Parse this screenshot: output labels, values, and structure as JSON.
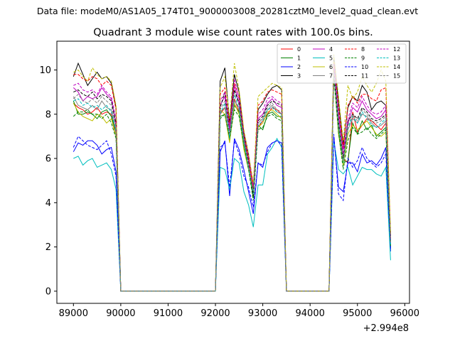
{
  "figure": {
    "suptitle": "Data file: modeM0/AS1A05_174T01_9000003008_20281cztM0_level2_quad_clean.evt",
    "offset_label": "+2.994e8"
  },
  "chart_data": {
    "type": "line",
    "title": "Quadrant 3 module wise count rates with 100.0s bins.",
    "xlabel": "",
    "ylabel": "",
    "xlim": [
      88650,
      96100
    ],
    "ylim": [
      -0.55,
      11.3
    ],
    "x_offset": 299400000,
    "xticks": [
      89000,
      90000,
      91000,
      92000,
      93000,
      94000,
      95000,
      96000
    ],
    "xtick_labels": [
      "89000",
      "90000",
      "91000",
      "92000",
      "93000",
      "94000",
      "95000",
      "96000"
    ],
    "yticks": [
      0,
      2,
      4,
      6,
      8,
      10
    ],
    "ytick_labels": [
      "0",
      "2",
      "4",
      "6",
      "8",
      "10"
    ],
    "grid": false,
    "legend_placement": "top-right",
    "legend_columns": 4,
    "segments": [
      {
        "x_start": 89000,
        "step": 100,
        "count": 7
      },
      {
        "x_start": 89700,
        "step": 100,
        "count": 3
      },
      {
        "x_start": 90000,
        "step": 100,
        "count": 19
      },
      {
        "x_start": 92000,
        "step": 100,
        "count": 16
      },
      {
        "x_start": 93600,
        "step": 100,
        "count": 9
      },
      {
        "x_start": 94500,
        "step": 100,
        "count": 13
      }
    ],
    "series": [
      {
        "name": "0",
        "color": "#ff0000",
        "dash": "solid",
        "values": [
          8.5,
          8.3,
          8.2,
          8.0,
          8.1,
          8.3,
          8.0,
          8.1,
          8.0,
          7.0,
          0,
          0,
          0,
          0,
          0,
          0,
          0,
          0,
          0,
          0,
          0,
          0,
          0,
          0,
          0,
          0,
          0,
          0,
          0,
          0,
          8.0,
          8.3,
          7.0,
          8.7,
          8.1,
          6.8,
          6.0,
          4.8,
          7.4,
          7.7,
          8.0,
          8.3,
          8.2,
          8.0,
          0,
          0,
          0,
          0,
          0,
          0,
          0,
          0,
          0,
          0,
          10.2,
          7.5,
          6.0,
          5.8,
          8.1,
          7.2,
          7.5,
          7.8,
          7.7,
          7.5,
          7.3,
          7.6,
          2.3
        ]
      },
      {
        "name": "1",
        "color": "#008000",
        "dash": "solid",
        "values": [
          8.6,
          8.0,
          8.0,
          8.1,
          8.0,
          7.8,
          8.1,
          8.2,
          7.9,
          7.2,
          0,
          0,
          0,
          0,
          0,
          0,
          0,
          0,
          0,
          0,
          0,
          0,
          0,
          0,
          0,
          0,
          0,
          0,
          0,
          0,
          7.9,
          8.0,
          6.8,
          8.4,
          8.1,
          6.6,
          5.6,
          4.2,
          7.5,
          7.3,
          8.0,
          8.1,
          7.9,
          7.9,
          0,
          0,
          0,
          0,
          0,
          0,
          0,
          0,
          0,
          0,
          10.0,
          7.2,
          5.8,
          5.9,
          7.6,
          7.1,
          7.7,
          7.3,
          7.5,
          7.0,
          7.2,
          7.4,
          2.0
        ]
      },
      {
        "name": "2",
        "color": "#0000ff",
        "dash": "solid",
        "values": [
          6.3,
          6.7,
          6.6,
          6.8,
          6.8,
          6.6,
          6.2,
          6.4,
          6.5,
          5.4,
          0,
          0,
          0,
          0,
          0,
          0,
          0,
          0,
          0,
          0,
          0,
          0,
          0,
          0,
          0,
          0,
          0,
          0,
          0,
          0,
          6.3,
          6.8,
          4.3,
          6.9,
          6.4,
          5.5,
          4.5,
          3.5,
          5.8,
          5.6,
          6.5,
          6.7,
          6.8,
          6.7,
          0,
          0,
          0,
          0,
          0,
          0,
          0,
          0,
          0,
          0,
          7.0,
          4.7,
          4.5,
          5.8,
          5.8,
          5.4,
          6.2,
          5.8,
          5.9,
          5.7,
          6.0,
          6.5,
          1.8
        ]
      },
      {
        "name": "3",
        "color": "#000000",
        "dash": "solid",
        "values": [
          9.7,
          10.3,
          9.8,
          9.3,
          9.6,
          9.9,
          9.6,
          9.7,
          9.4,
          8.3,
          0,
          0,
          0,
          0,
          0,
          0,
          0,
          0,
          0,
          0,
          0,
          0,
          0,
          0,
          0,
          0,
          0,
          0,
          0,
          0,
          9.5,
          10.1,
          7.6,
          9.8,
          9.0,
          7.2,
          6.2,
          4.5,
          8.2,
          8.5,
          8.9,
          9.2,
          9.3,
          9.1,
          0,
          0,
          0,
          0,
          0,
          0,
          0,
          0,
          0,
          0,
          10.6,
          8.6,
          6.6,
          8.3,
          8.8,
          8.6,
          9.3,
          9.0,
          8.2,
          8.5,
          8.6,
          8.4,
          2.5
        ]
      },
      {
        "name": "4",
        "color": "#bf00bf",
        "dash": "solid",
        "values": [
          9.2,
          9.0,
          8.6,
          8.8,
          8.7,
          8.8,
          9.2,
          8.9,
          8.7,
          7.5,
          0,
          0,
          0,
          0,
          0,
          0,
          0,
          0,
          0,
          0,
          0,
          0,
          0,
          0,
          0,
          0,
          0,
          0,
          0,
          0,
          8.4,
          8.8,
          7.3,
          9.3,
          8.5,
          7.0,
          5.9,
          4.7,
          7.8,
          8.0,
          8.5,
          8.7,
          8.4,
          8.3,
          0,
          0,
          0,
          0,
          0,
          0,
          0,
          0,
          0,
          0,
          10.1,
          7.9,
          6.4,
          7.6,
          8.3,
          8.1,
          8.6,
          8.2,
          8.0,
          7.8,
          7.9,
          8.2,
          2.2
        ]
      },
      {
        "name": "5",
        "color": "#00bfbf",
        "dash": "solid",
        "values": [
          6.0,
          6.1,
          5.7,
          5.9,
          6.0,
          5.6,
          5.7,
          5.8,
          5.5,
          4.6,
          0,
          0,
          0,
          0,
          0,
          0,
          0,
          0,
          0,
          0,
          0,
          0,
          0,
          0,
          0,
          0,
          0,
          0,
          0,
          0,
          5.6,
          5.5,
          4.6,
          6.0,
          5.8,
          4.5,
          3.9,
          2.9,
          4.8,
          4.8,
          6.2,
          6.5,
          6.9,
          6.5,
          0,
          0,
          0,
          0,
          0,
          0,
          0,
          0,
          0,
          0,
          6.8,
          5.5,
          5.3,
          5.6,
          4.8,
          5.2,
          5.6,
          5.5,
          5.5,
          5.3,
          5.2,
          5.6,
          1.4
        ]
      },
      {
        "name": "6",
        "color": "#bfbf00",
        "dash": "solid",
        "values": [
          8.5,
          8.1,
          7.9,
          7.8,
          7.7,
          8.0,
          7.9,
          7.6,
          7.8,
          7.0,
          0,
          0,
          0,
          0,
          0,
          0,
          0,
          0,
          0,
          0,
          0,
          0,
          0,
          0,
          0,
          0,
          0,
          0,
          0,
          0,
          8.2,
          8.0,
          6.7,
          8.5,
          8.0,
          6.4,
          5.5,
          4.4,
          7.4,
          7.6,
          8.1,
          8.2,
          8.0,
          7.8,
          0,
          0,
          0,
          0,
          0,
          0,
          0,
          0,
          0,
          0,
          9.9,
          7.1,
          5.7,
          7.1,
          7.5,
          7.3,
          7.5,
          7.7,
          7.4,
          7.1,
          7.0,
          7.2,
          2.1
        ]
      },
      {
        "name": "7",
        "color": "#808080",
        "dash": "solid",
        "values": [
          8.8,
          8.4,
          8.3,
          8.2,
          8.4,
          8.2,
          8.6,
          8.3,
          8.2,
          7.3,
          0,
          0,
          0,
          0,
          0,
          0,
          0,
          0,
          0,
          0,
          0,
          0,
          0,
          0,
          0,
          0,
          0,
          0,
          0,
          0,
          8.1,
          8.3,
          7.0,
          8.6,
          8.3,
          6.8,
          5.6,
          4.5,
          7.6,
          7.8,
          8.2,
          8.4,
          8.1,
          8.0,
          0,
          0,
          0,
          0,
          0,
          0,
          0,
          0,
          0,
          0,
          9.8,
          7.6,
          5.9,
          7.3,
          7.8,
          7.6,
          8.0,
          7.9,
          7.6,
          7.4,
          7.5,
          7.7,
          2.2
        ]
      },
      {
        "name": "8",
        "color": "#ff0000",
        "dash": "dashed",
        "values": [
          9.8,
          9.8,
          9.6,
          9.5,
          9.7,
          9.6,
          9.3,
          9.5,
          9.3,
          8.2,
          0,
          0,
          0,
          0,
          0,
          0,
          0,
          0,
          0,
          0,
          0,
          0,
          0,
          0,
          0,
          0,
          0,
          0,
          0,
          0,
          8.9,
          9.2,
          7.5,
          9.4,
          8.8,
          7.1,
          6.0,
          4.6,
          8.4,
          8.6,
          9.0,
          9.1,
          9.0,
          8.9,
          0,
          0,
          0,
          0,
          0,
          0,
          0,
          0,
          0,
          0,
          10.4,
          8.3,
          6.5,
          8.4,
          8.8,
          8.5,
          8.9,
          8.9,
          8.7,
          8.6,
          9.1,
          9.2,
          2.5
        ]
      },
      {
        "name": "9",
        "color": "#008000",
        "dash": "dashed",
        "values": [
          7.9,
          8.1,
          8.1,
          8.2,
          8.0,
          8.0,
          7.8,
          8.0,
          7.6,
          6.9,
          0,
          0,
          0,
          0,
          0,
          0,
          0,
          0,
          0,
          0,
          0,
          0,
          0,
          0,
          0,
          0,
          0,
          0,
          0,
          0,
          7.8,
          8.0,
          6.9,
          8.2,
          7.9,
          6.6,
          5.5,
          4.1,
          7.3,
          7.4,
          7.9,
          8.0,
          7.8,
          7.7,
          0,
          0,
          0,
          0,
          0,
          0,
          0,
          0,
          0,
          0,
          9.7,
          7.2,
          5.5,
          6.8,
          7.4,
          7.1,
          7.2,
          7.4,
          7.1,
          6.9,
          7.1,
          7.3,
          2.0
        ]
      },
      {
        "name": "10",
        "color": "#0000ff",
        "dash": "dashed",
        "values": [
          6.5,
          7.0,
          6.8,
          6.6,
          6.5,
          6.4,
          6.6,
          6.8,
          6.2,
          5.2,
          0,
          0,
          0,
          0,
          0,
          0,
          0,
          0,
          0,
          0,
          0,
          0,
          0,
          0,
          0,
          0,
          0,
          0,
          0,
          0,
          6.5,
          6.7,
          4.7,
          6.8,
          6.2,
          5.2,
          4.7,
          3.8,
          5.8,
          5.7,
          6.3,
          6.7,
          6.8,
          6.6,
          0,
          0,
          0,
          0,
          0,
          0,
          0,
          0,
          0,
          0,
          7.1,
          4.4,
          4.1,
          6.0,
          5.6,
          5.9,
          6.5,
          6.0,
          5.8,
          5.6,
          5.8,
          6.2,
          1.9
        ]
      },
      {
        "name": "11",
        "color": "#000000",
        "dash": "dashed",
        "values": [
          9.0,
          9.1,
          8.9,
          8.8,
          9.0,
          8.7,
          8.9,
          8.8,
          8.6,
          7.6,
          0,
          0,
          0,
          0,
          0,
          0,
          0,
          0,
          0,
          0,
          0,
          0,
          0,
          0,
          0,
          0,
          0,
          0,
          0,
          0,
          8.3,
          9.0,
          7.1,
          9.1,
          8.5,
          7.0,
          5.8,
          4.3,
          7.7,
          7.9,
          8.4,
          8.6,
          8.5,
          8.4,
          0,
          0,
          0,
          0,
          0,
          0,
          0,
          0,
          0,
          0,
          10.0,
          7.7,
          6.0,
          7.7,
          8.0,
          7.8,
          8.3,
          8.1,
          7.8,
          7.7,
          7.8,
          8.0,
          2.3
        ]
      },
      {
        "name": "12",
        "color": "#bf00bf",
        "dash": "dashed",
        "values": [
          9.3,
          9.4,
          9.1,
          9.0,
          9.1,
          8.9,
          9.3,
          9.0,
          8.8,
          7.8,
          0,
          0,
          0,
          0,
          0,
          0,
          0,
          0,
          0,
          0,
          0,
          0,
          0,
          0,
          0,
          0,
          0,
          0,
          0,
          0,
          8.6,
          9.0,
          7.4,
          9.6,
          8.7,
          7.2,
          6.1,
          4.8,
          8.0,
          8.2,
          8.7,
          8.8,
          8.6,
          8.5,
          0,
          0,
          0,
          0,
          0,
          0,
          0,
          0,
          0,
          0,
          10.3,
          8.1,
          6.2,
          7.8,
          8.5,
          8.3,
          8.8,
          8.4,
          8.1,
          8.0,
          8.1,
          8.4,
          2.3
        ]
      },
      {
        "name": "13",
        "color": "#00bfbf",
        "dash": "dashed",
        "values": [
          8.6,
          8.7,
          8.4,
          8.5,
          8.3,
          8.4,
          8.2,
          8.4,
          8.1,
          7.2,
          0,
          0,
          0,
          0,
          0,
          0,
          0,
          0,
          0,
          0,
          0,
          0,
          0,
          0,
          0,
          0,
          0,
          0,
          0,
          0,
          8.0,
          8.5,
          6.9,
          8.9,
          8.2,
          6.7,
          5.6,
          4.4,
          7.5,
          7.7,
          8.2,
          8.3,
          8.1,
          8.0,
          0,
          0,
          0,
          0,
          0,
          0,
          0,
          0,
          0,
          0,
          9.9,
          7.5,
          5.8,
          7.4,
          7.9,
          7.6,
          8.1,
          7.8,
          7.5,
          7.4,
          7.6,
          7.8,
          2.1
        ]
      },
      {
        "name": "14",
        "color": "#bfbf00",
        "dash": "dashed",
        "values": [
          9.9,
          10.0,
          9.7,
          9.5,
          10.1,
          9.8,
          9.6,
          9.7,
          9.5,
          8.4,
          0,
          0,
          0,
          0,
          0,
          0,
          0,
          0,
          0,
          0,
          0,
          0,
          0,
          0,
          0,
          0,
          0,
          0,
          0,
          0,
          9.2,
          9.7,
          7.8,
          10.3,
          9.1,
          7.3,
          6.2,
          4.9,
          8.8,
          9.0,
          9.2,
          9.4,
          9.3,
          9.2,
          0,
          0,
          0,
          0,
          0,
          0,
          0,
          0,
          0,
          0,
          10.7,
          8.8,
          6.8,
          9.3,
          8.7,
          9.0,
          9.7,
          9.3,
          9.0,
          9.4,
          10.0,
          9.5,
          2.6
        ]
      },
      {
        "name": "15",
        "color": "#808080",
        "dash": "dashed",
        "values": [
          8.7,
          8.9,
          8.6,
          8.5,
          8.7,
          8.5,
          8.8,
          8.6,
          8.4,
          7.4,
          0,
          0,
          0,
          0,
          0,
          0,
          0,
          0,
          0,
          0,
          0,
          0,
          0,
          0,
          0,
          0,
          0,
          0,
          0,
          0,
          8.2,
          8.6,
          7.1,
          9.0,
          8.4,
          6.9,
          5.7,
          4.5,
          7.6,
          7.8,
          8.3,
          8.5,
          8.2,
          8.1,
          0,
          0,
          0,
          0,
          0,
          0,
          0,
          0,
          0,
          0,
          9.9,
          7.7,
          5.9,
          7.5,
          8.0,
          7.7,
          8.2,
          8.0,
          7.7,
          7.6,
          7.7,
          7.9,
          2.2
        ]
      }
    ]
  }
}
